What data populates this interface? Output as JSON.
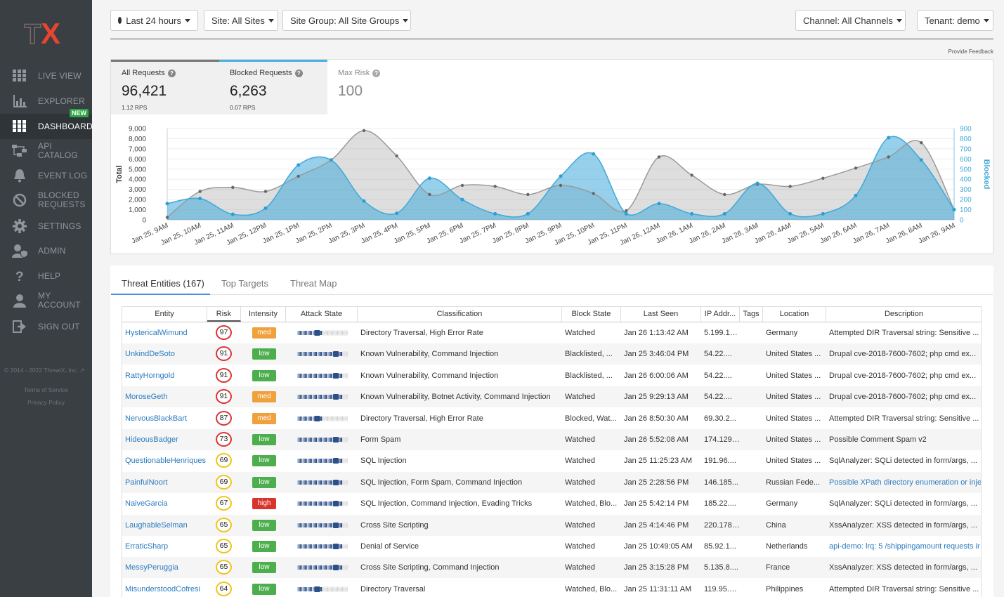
{
  "sidebar": {
    "logo": "TX",
    "items": [
      {
        "label": "LIVE VIEW",
        "icon": "grid-icon"
      },
      {
        "label": "EXPLORER",
        "icon": "bar-chart-icon"
      },
      {
        "label": "DASHBOARD",
        "icon": "dashboard-icon",
        "badge": "NEW"
      },
      {
        "label": "API CATALOG",
        "icon": "api-catalog-icon"
      },
      {
        "label": "EVENT LOG",
        "icon": "bell-icon"
      },
      {
        "label": "BLOCKED REQUESTS",
        "icon": "blocked-icon"
      },
      {
        "label": "SETTINGS",
        "icon": "gear-icon"
      },
      {
        "label": "ADMIN",
        "icon": "admin-icon"
      },
      {
        "label": "HELP",
        "icon": "help-icon"
      },
      {
        "label": "MY ACCOUNT",
        "icon": "user-icon"
      },
      {
        "label": "SIGN OUT",
        "icon": "sign-out-icon"
      }
    ],
    "copyright": "© 2014 - 2022 ThreatX, Inc.",
    "terms": "Terms of Service",
    "privacy": "Privacy Policy"
  },
  "filters": {
    "time": "Last 24 hours",
    "site": "Site: All Sites",
    "site_group": "Site Group: All Site Groups",
    "channel": "Channel: All Channels",
    "tenant": "Tenant: demo"
  },
  "feedback": "Provide Feedback",
  "stats": {
    "all": {
      "label": "All Requests",
      "value": "96,421",
      "sub": "1.12 RPS"
    },
    "blocked": {
      "label": "Blocked Requests",
      "value": "6,263",
      "sub": "0.07 RPS"
    },
    "risk": {
      "label": "Max Risk",
      "value": "100"
    }
  },
  "colors": {
    "accent": "#4a90e2",
    "blocked": "#3fa9d8",
    "total": "#9a9a9a"
  },
  "chart_data": {
    "type": "area",
    "ylabel": "Total",
    "y2label": "Blocked",
    "ylim": [
      0,
      9000
    ],
    "y2lim": [
      0,
      900
    ],
    "yticks": [
      "9,000",
      "8,000",
      "7,000",
      "6,000",
      "5,000",
      "4,000",
      "3,000",
      "2,000",
      "1,000",
      "0"
    ],
    "y2ticks": [
      "900",
      "800",
      "700",
      "600",
      "500",
      "400",
      "300",
      "200",
      "100",
      "0"
    ],
    "categories": [
      "Jan 25, 9AM",
      "Jan 25, 10AM",
      "Jan 25, 11AM",
      "Jan 25, 12PM",
      "Jan 25, 1PM",
      "Jan 25, 2PM",
      "Jan 25, 3PM",
      "Jan 25, 4PM",
      "Jan 25, 5PM",
      "Jan 25, 6PM",
      "Jan 25, 7PM",
      "Jan 25, 8PM",
      "Jan 25, 9PM",
      "Jan 25, 10PM",
      "Jan 25, 11PM",
      "Jan 26, 12AM",
      "Jan 26, 1AM",
      "Jan 26, 2AM",
      "Jan 26, 3AM",
      "Jan 26, 4AM",
      "Jan 26, 5AM",
      "Jan 26, 6AM",
      "Jan 26, 7AM",
      "Jan 26, 8AM",
      "Jan 26, 9AM"
    ],
    "series": [
      {
        "name": "Total",
        "axis": "left",
        "values": [
          250,
          2800,
          3200,
          2800,
          4300,
          5900,
          8800,
          6300,
          2500,
          3400,
          3300,
          2500,
          3400,
          2600,
          900,
          6200,
          4400,
          2500,
          3500,
          3300,
          4100,
          5100,
          6200,
          7600,
          1000
        ]
      },
      {
        "name": "Blocked",
        "axis": "right",
        "values": [
          160,
          210,
          55,
          115,
          540,
          590,
          185,
          65,
          410,
          200,
          60,
          60,
          430,
          650,
          60,
          160,
          60,
          60,
          360,
          60,
          60,
          240,
          810,
          590,
          100
        ]
      }
    ]
  },
  "tabs": [
    "Threat Entities (167)",
    "Top Targets",
    "Threat Map"
  ],
  "columns": [
    "Entity",
    "Risk",
    "Intensity",
    "Attack State",
    "Classification",
    "Block State",
    "Last Seen",
    "IP Addr...",
    "Tags",
    "Location",
    "Description"
  ],
  "rows": [
    {
      "entity": "HystericalWimund",
      "risk": "97",
      "intensity": "med",
      "attack": 0.45,
      "classification": "Directory Traversal, High Error Rate",
      "block": "Watched",
      "seen": "Jan 26 1:13:42 AM",
      "ip": "5.199.13...",
      "tags": "",
      "location": "Germany",
      "desc": "Attempted DIR Traversal string: Sensitive ...",
      "desc_link": false
    },
    {
      "entity": "UnkindDeSoto",
      "risk": "91",
      "intensity": "low",
      "attack": 0.82,
      "classification": "Known Vulnerability, Command Injection",
      "block": "Blacklisted, ...",
      "seen": "Jan 25 3:46:04 PM",
      "ip": "54.22....",
      "tags": "",
      "location": "United States ...",
      "desc": "Drupal cve-2018-7600-7602; php cmd ex...",
      "desc_link": false
    },
    {
      "entity": "RattyHorngold",
      "risk": "91",
      "intensity": "low",
      "attack": 0.82,
      "classification": "Known Vulnerability, Command Injection",
      "block": "Blacklisted, ...",
      "seen": "Jan 26 6:00:06 AM",
      "ip": "54.22....",
      "tags": "",
      "location": "United States ...",
      "desc": "Drupal cve-2018-7600-7602; php cmd ex...",
      "desc_link": false
    },
    {
      "entity": "MoroseGeth",
      "risk": "91",
      "intensity": "med",
      "attack": 0.82,
      "classification": "Known Vulnerability, Botnet Activity, Command Injection",
      "block": "Watched",
      "seen": "Jan 25 9:29:13 AM",
      "ip": "54.22....",
      "tags": "",
      "location": "United States ...",
      "desc": "Drupal cve-2018-7600-7602; php cmd ex...",
      "desc_link": false
    },
    {
      "entity": "NervousBlackBart",
      "risk": "87",
      "intensity": "med",
      "attack": 0.45,
      "classification": "Directory Traversal, High Error Rate",
      "block": "Blocked, Wat...",
      "seen": "Jan 26 8:50:30 AM",
      "ip": "69.30.2...",
      "tags": "",
      "location": "United States ...",
      "desc": "Attempted DIR Traversal string: Sensitive ...",
      "desc_link": false
    },
    {
      "entity": "HideousBadger",
      "risk": "73",
      "intensity": "low",
      "attack": 0.82,
      "classification": "Form Spam",
      "block": "Watched",
      "seen": "Jan 26 5:52:08 AM",
      "ip": "174.129....",
      "tags": "",
      "location": "United States ...",
      "desc": "Possible Comment Spam v2",
      "desc_link": false
    },
    {
      "entity": "QuestionableHenriques",
      "risk": "69",
      "intensity": "low",
      "attack": 0.82,
      "classification": "SQL Injection",
      "block": "Watched",
      "seen": "Jan 25 11:25:23 AM",
      "ip": "191.96....",
      "tags": "",
      "location": "United States ...",
      "desc": "SqlAnalyzer: SQLi detected in form/args, ...",
      "desc_link": false
    },
    {
      "entity": "PainfulNoort",
      "risk": "69",
      "intensity": "low",
      "attack": 0.82,
      "classification": "SQL Injection, Form Spam, Command Injection",
      "block": "Watched",
      "seen": "Jan 25 2:28:56 PM",
      "ip": "146.185...",
      "tags": "",
      "location": "Russian Fede...",
      "desc": "Possible XPath directory enumeration or inje",
      "desc_link": true
    },
    {
      "entity": "NaiveGarcia",
      "risk": "67",
      "intensity": "high",
      "attack": 0.82,
      "classification": "SQL Injection, Command Injection, Evading Tricks",
      "block": "Watched, Blo...",
      "seen": "Jan 25 5:42:14 PM",
      "ip": "185.22....",
      "tags": "",
      "location": "Germany",
      "desc": "SqlAnalyzer: SQLi detected in form/args, ...",
      "desc_link": false
    },
    {
      "entity": "LaughableSelman",
      "risk": "65",
      "intensity": "low",
      "attack": 0.82,
      "classification": "Cross Site Scripting",
      "block": "Watched",
      "seen": "Jan 25 4:14:46 PM",
      "ip": "220.178....",
      "tags": "",
      "location": "China",
      "desc": "XssAnalyzer: XSS detected in form/args, ...",
      "desc_link": false
    },
    {
      "entity": "ErraticSharp",
      "risk": "65",
      "intensity": "low",
      "attack": 0.82,
      "classification": "Denial of Service",
      "block": "Watched",
      "seen": "Jan 25 10:49:05 AM",
      "ip": "85.92.1...",
      "tags": "",
      "location": "Netherlands",
      "desc": "api-demo: lrq: 5 /shippingamount requests ir",
      "desc_link": true
    },
    {
      "entity": "MessyPeruggia",
      "risk": "65",
      "intensity": "low",
      "attack": 0.82,
      "classification": "Cross Site Scripting, Command Injection",
      "block": "Watched",
      "seen": "Jan 25 3:15:28 PM",
      "ip": "5.135.8....",
      "tags": "",
      "location": "France",
      "desc": "XssAnalyzer: XSS detected in form/args, ...",
      "desc_link": false
    },
    {
      "entity": "MisunderstoodCofresi",
      "risk": "64",
      "intensity": "low",
      "attack": 0.45,
      "classification": "Directory Traversal",
      "block": "Watched, Blo...",
      "seen": "Jan 25 11:31:11 AM",
      "ip": "119.95.1...",
      "tags": "",
      "location": "Philippines",
      "desc": "Attempted DIR Traversal string: Sensitive ...",
      "desc_link": false
    }
  ]
}
